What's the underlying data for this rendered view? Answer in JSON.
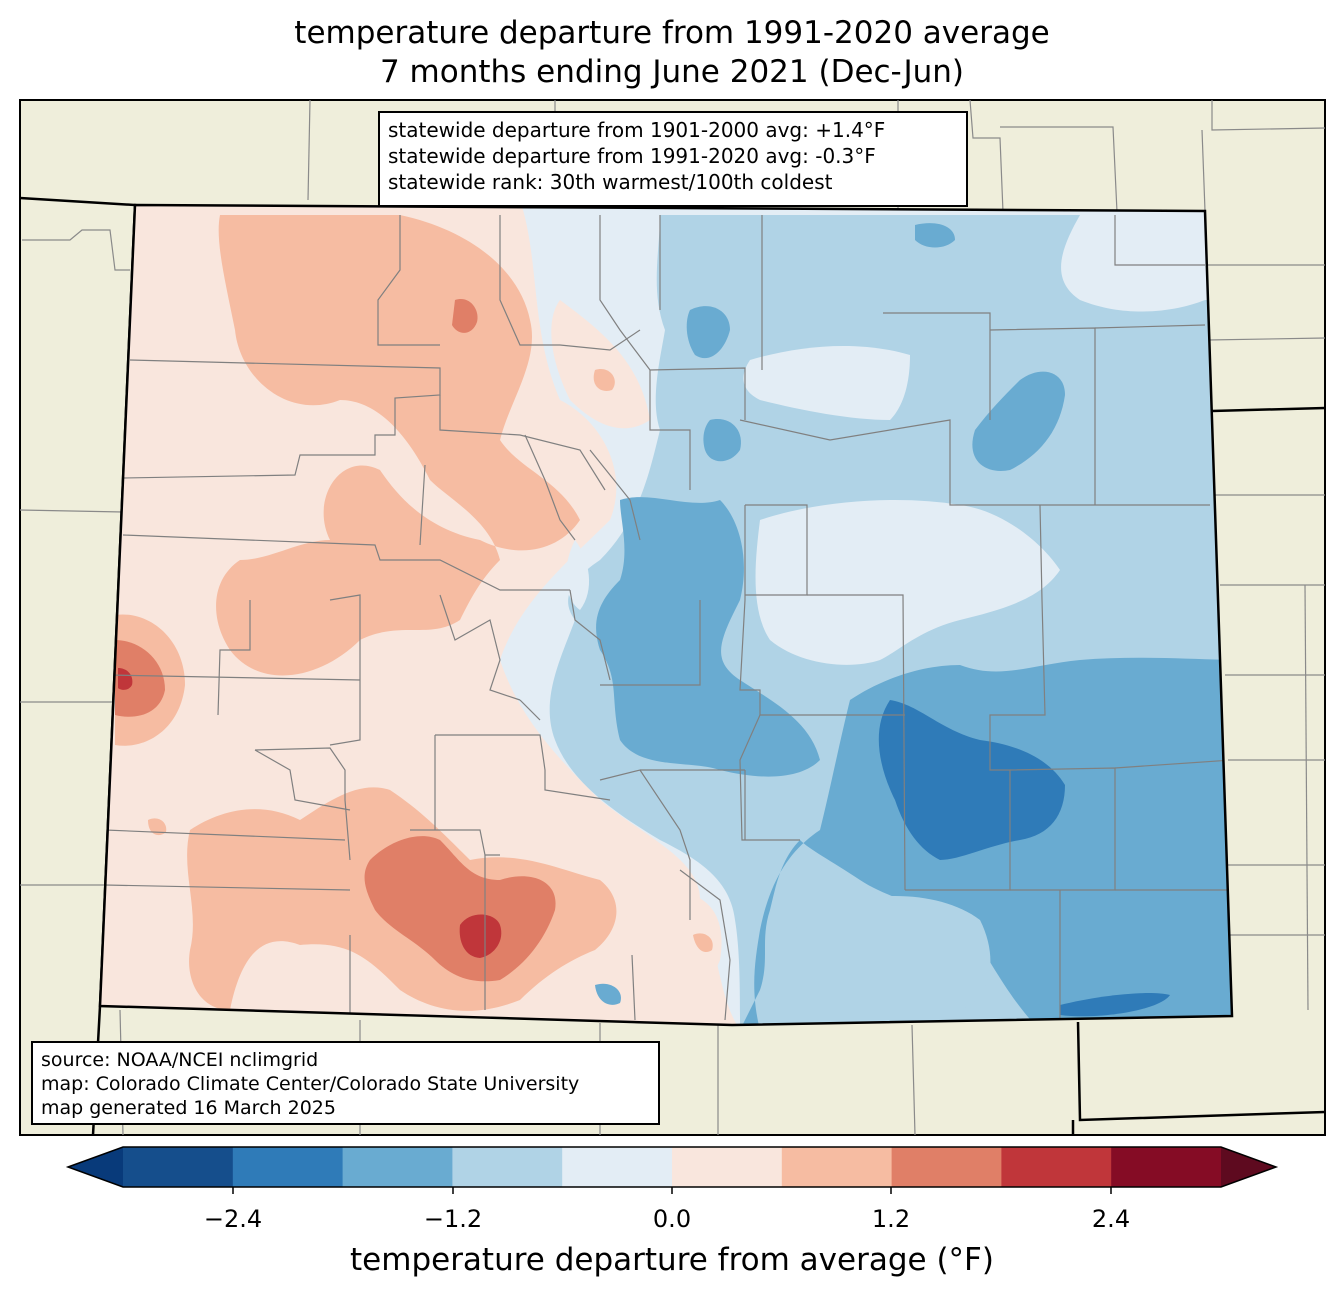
{
  "title": {
    "line1": "temperature departure from 1991-2020 average",
    "line2": "7 months ending June 2021 (Dec-Jun)"
  },
  "stats_box": {
    "line1": "statewide departure from 1901-2000 avg: +1.4°F",
    "line2": "statewide departure from 1991-2020 avg: -0.3°F",
    "line3": "statewide rank: 30th warmest/100th coldest"
  },
  "source_box": {
    "line1": "source: NOAA/NCEI nclimgrid",
    "line2": "map: Colorado Climate Center/Colorado State University",
    "line3": "map generated 16 March 2025"
  },
  "colorbar": {
    "label": "temperature departure from average (°F)",
    "ticks": [
      "−2.4",
      "−1.2",
      "0.0",
      "1.2",
      "2.4"
    ],
    "colors": [
      "#083a7a",
      "#154e8c",
      "#2f7bb8",
      "#69abd1",
      "#b0d3e6",
      "#e3edf5",
      "#f9e6dd",
      "#f6bca2",
      "#e07f67",
      "#c0363a",
      "#850c25",
      "#5e0a1f"
    ]
  },
  "colors": {
    "land_outside": "#efeedb",
    "county_lines": "#808080",
    "state_border": "#000000"
  }
}
